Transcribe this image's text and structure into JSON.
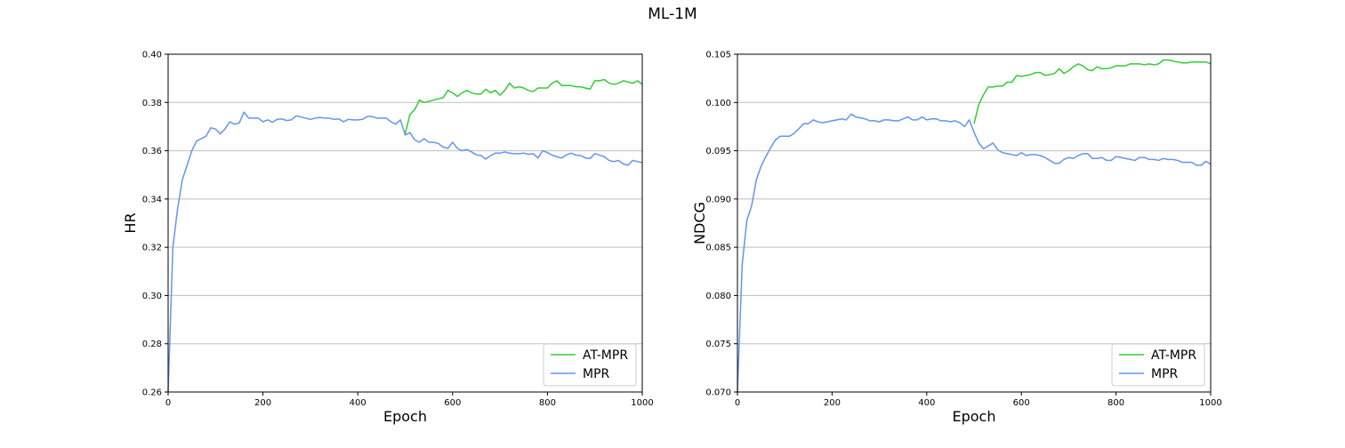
{
  "figure": {
    "title": "ML-1M"
  },
  "colors": {
    "at_mpr": "#33cc33",
    "mpr": "#6495ed",
    "grid": "#bfbfbf",
    "axis": "#000000"
  },
  "chart_data": [
    {
      "type": "line",
      "title": "",
      "xlabel": "Epoch",
      "ylabel": "HR",
      "xlim": [
        0,
        1000
      ],
      "ylim": [
        0.26,
        0.4
      ],
      "xticks": [
        0,
        200,
        400,
        600,
        800,
        1000
      ],
      "xtick_labels": [
        "0",
        "200",
        "400",
        "600",
        "800",
        "1000"
      ],
      "yticks": [
        0.26,
        0.28,
        0.3,
        0.32,
        0.34,
        0.36,
        0.38,
        0.4
      ],
      "ytick_labels": [
        "0.26",
        "0.28",
        "0.30",
        "0.32",
        "0.34",
        "0.36",
        "0.38",
        "0.40"
      ],
      "grid": "horizontal",
      "legend": "lower right",
      "series": [
        {
          "name": "AT-MPR",
          "color": "#33cc33",
          "x": [
            500,
            510,
            520,
            530,
            540,
            550,
            560,
            570,
            580,
            590,
            600,
            610,
            620,
            630,
            640,
            650,
            660,
            670,
            680,
            690,
            700,
            710,
            720,
            730,
            740,
            750,
            760,
            770,
            780,
            790,
            800,
            810,
            820,
            830,
            840,
            850,
            860,
            870,
            880,
            890,
            900,
            910,
            920,
            930,
            940,
            950,
            960,
            970,
            980,
            990,
            1000
          ],
          "y": [
            0.367,
            0.375,
            0.377,
            0.381,
            0.38,
            0.3805,
            0.381,
            0.3815,
            0.382,
            0.385,
            0.384,
            0.3825,
            0.384,
            0.385,
            0.384,
            0.3835,
            0.3835,
            0.3855,
            0.384,
            0.385,
            0.383,
            0.385,
            0.388,
            0.386,
            0.3865,
            0.386,
            0.385,
            0.3845,
            0.386,
            0.386,
            0.386,
            0.388,
            0.389,
            0.387,
            0.387,
            0.387,
            0.3865,
            0.3865,
            0.386,
            0.3855,
            0.389,
            0.389,
            0.3895,
            0.388,
            0.3875,
            0.388,
            0.389,
            0.3885,
            0.388,
            0.389,
            0.3875
          ]
        },
        {
          "name": "MPR",
          "color": "#6495ed",
          "x": [
            0,
            10,
            20,
            30,
            40,
            50,
            60,
            70,
            80,
            90,
            100,
            110,
            120,
            130,
            140,
            150,
            160,
            170,
            180,
            190,
            200,
            210,
            220,
            230,
            240,
            250,
            260,
            270,
            280,
            290,
            300,
            310,
            320,
            330,
            340,
            350,
            360,
            370,
            380,
            390,
            400,
            410,
            420,
            430,
            440,
            450,
            460,
            470,
            480,
            490,
            500,
            510,
            520,
            530,
            540,
            550,
            560,
            570,
            580,
            590,
            600,
            610,
            620,
            630,
            640,
            650,
            660,
            670,
            680,
            690,
            700,
            710,
            720,
            730,
            740,
            750,
            760,
            770,
            780,
            790,
            800,
            810,
            820,
            830,
            840,
            850,
            860,
            870,
            880,
            890,
            900,
            910,
            920,
            930,
            940,
            950,
            960,
            970,
            980,
            990,
            1000
          ],
          "y": [
            0.26,
            0.32,
            0.336,
            0.348,
            0.354,
            0.36,
            0.364,
            0.365,
            0.366,
            0.3695,
            0.369,
            0.367,
            0.369,
            0.372,
            0.371,
            0.3715,
            0.376,
            0.3735,
            0.3735,
            0.3735,
            0.372,
            0.3728,
            0.3718,
            0.373,
            0.3732,
            0.3725,
            0.3728,
            0.3745,
            0.374,
            0.3735,
            0.373,
            0.3735,
            0.3738,
            0.3735,
            0.3735,
            0.373,
            0.3732,
            0.372,
            0.373,
            0.3728,
            0.3728,
            0.373,
            0.3742,
            0.3742,
            0.3735,
            0.3735,
            0.3735,
            0.372,
            0.371,
            0.3728,
            0.3665,
            0.3675,
            0.3645,
            0.3635,
            0.365,
            0.3635,
            0.3635,
            0.363,
            0.3615,
            0.361,
            0.3635,
            0.361,
            0.36,
            0.3605,
            0.3595,
            0.3583,
            0.358,
            0.3565,
            0.358,
            0.359,
            0.359,
            0.3595,
            0.359,
            0.3588,
            0.3588,
            0.359,
            0.3585,
            0.3588,
            0.357,
            0.36,
            0.3592,
            0.3582,
            0.3575,
            0.357,
            0.3583,
            0.359,
            0.3582,
            0.358,
            0.357,
            0.3568,
            0.3588,
            0.3582,
            0.3575,
            0.356,
            0.3555,
            0.356,
            0.3545,
            0.354,
            0.356,
            0.3555,
            0.355
          ]
        }
      ]
    },
    {
      "type": "line",
      "title": "",
      "xlabel": "Epoch",
      "ylabel": "NDCG",
      "xlim": [
        0,
        1000
      ],
      "ylim": [
        0.07,
        0.105
      ],
      "xticks": [
        0,
        200,
        400,
        600,
        800,
        1000
      ],
      "xtick_labels": [
        "0",
        "200",
        "400",
        "600",
        "800",
        "1000"
      ],
      "yticks": [
        0.07,
        0.075,
        0.08,
        0.085,
        0.09,
        0.095,
        0.1,
        0.105
      ],
      "ytick_labels": [
        "0.070",
        "0.075",
        "0.080",
        "0.085",
        "0.090",
        "0.095",
        "0.100",
        "0.105"
      ],
      "grid": "horizontal",
      "legend": "lower right",
      "series": [
        {
          "name": "AT-MPR",
          "color": "#33cc33",
          "x": [
            500,
            510,
            520,
            530,
            540,
            550,
            560,
            570,
            580,
            590,
            600,
            610,
            620,
            630,
            640,
            650,
            660,
            670,
            680,
            690,
            700,
            710,
            720,
            730,
            740,
            750,
            760,
            770,
            780,
            790,
            800,
            810,
            820,
            830,
            840,
            850,
            860,
            870,
            880,
            890,
            900,
            910,
            920,
            930,
            940,
            950,
            960,
            970,
            980,
            990,
            1000
          ],
          "y": [
            0.0978,
            0.0998,
            0.1008,
            0.1016,
            0.1016,
            0.1017,
            0.1017,
            0.1021,
            0.1021,
            0.1028,
            0.1027,
            0.1028,
            0.1029,
            0.1031,
            0.1031,
            0.1028,
            0.1029,
            0.103,
            0.1035,
            0.103,
            0.1033,
            0.1037,
            0.104,
            0.1038,
            0.1034,
            0.1033,
            0.1037,
            0.1035,
            0.1035,
            0.1036,
            0.1038,
            0.1038,
            0.1038,
            0.104,
            0.104,
            0.104,
            0.1039,
            0.104,
            0.1039,
            0.104,
            0.1044,
            0.1044,
            0.1043,
            0.1042,
            0.1041,
            0.1041,
            0.1042,
            0.1042,
            0.1042,
            0.1042,
            0.104
          ]
        },
        {
          "name": "MPR",
          "color": "#6495ed",
          "x": [
            0,
            10,
            20,
            30,
            40,
            50,
            60,
            70,
            80,
            90,
            100,
            110,
            120,
            130,
            140,
            150,
            160,
            170,
            180,
            190,
            200,
            210,
            220,
            230,
            240,
            250,
            260,
            270,
            280,
            290,
            300,
            310,
            320,
            330,
            340,
            350,
            360,
            370,
            380,
            390,
            400,
            410,
            420,
            430,
            440,
            450,
            460,
            470,
            480,
            490,
            500,
            510,
            520,
            530,
            540,
            550,
            560,
            570,
            580,
            590,
            600,
            610,
            620,
            630,
            640,
            650,
            660,
            670,
            680,
            690,
            700,
            710,
            720,
            730,
            740,
            750,
            760,
            770,
            780,
            790,
            800,
            810,
            820,
            830,
            840,
            850,
            860,
            870,
            880,
            890,
            900,
            910,
            920,
            930,
            940,
            950,
            960,
            970,
            980,
            990,
            1000
          ],
          "y": [
            0.07,
            0.0832,
            0.0878,
            0.0893,
            0.092,
            0.0934,
            0.0944,
            0.0953,
            0.0961,
            0.0965,
            0.0965,
            0.0965,
            0.0968,
            0.0973,
            0.0978,
            0.0978,
            0.0982,
            0.098,
            0.0979,
            0.098,
            0.0981,
            0.0982,
            0.0983,
            0.0982,
            0.0988,
            0.0985,
            0.0984,
            0.0983,
            0.0981,
            0.0981,
            0.098,
            0.0982,
            0.0982,
            0.0981,
            0.0981,
            0.0983,
            0.0985,
            0.0982,
            0.0982,
            0.0985,
            0.0982,
            0.0983,
            0.0983,
            0.0981,
            0.0981,
            0.098,
            0.0981,
            0.0979,
            0.0975,
            0.0982,
            0.0969,
            0.0958,
            0.0952,
            0.0955,
            0.0958,
            0.0951,
            0.0948,
            0.0947,
            0.0946,
            0.0945,
            0.0948,
            0.0945,
            0.0946,
            0.0946,
            0.0945,
            0.0943,
            0.094,
            0.0937,
            0.0937,
            0.0941,
            0.0943,
            0.0942,
            0.0945,
            0.0947,
            0.0947,
            0.0942,
            0.0942,
            0.0943,
            0.094,
            0.094,
            0.0944,
            0.0943,
            0.0942,
            0.0941,
            0.094,
            0.0943,
            0.0943,
            0.0941,
            0.0941,
            0.094,
            0.0942,
            0.0941,
            0.0941,
            0.094,
            0.0938,
            0.0938,
            0.0938,
            0.0935,
            0.0935,
            0.0939,
            0.0936
          ]
        }
      ]
    }
  ]
}
